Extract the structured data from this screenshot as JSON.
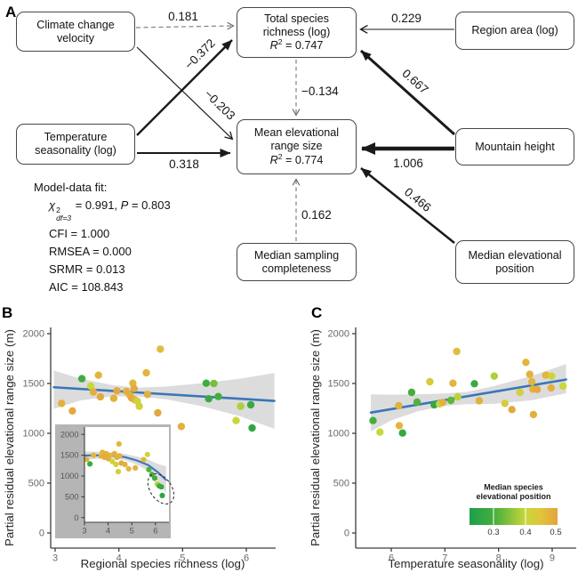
{
  "figure": {
    "panels": {
      "a": "A",
      "b": "B",
      "c": "C"
    }
  },
  "diagram": {
    "nodes": {
      "ccv": {
        "line1": "Climate change",
        "line2": "velocity"
      },
      "ts": {
        "line1": "Temperature",
        "line2": "seasonality (log)"
      },
      "tsr": {
        "line1": "Total species",
        "line2": "richness (log)",
        "r2_var": "R",
        "r2_exp": "2",
        "r2_val": " = 0.747"
      },
      "mers": {
        "line1": "Mean elevational",
        "line2": "range size",
        "r2_var": "R",
        "r2_exp": "2",
        "r2_val": " = 0.774"
      },
      "ra": {
        "line1": "Region area (log)"
      },
      "mh": {
        "line1": "Mountain height"
      },
      "msc": {
        "line1": "Median sampling",
        "line2": "completeness"
      },
      "mep": {
        "line1": "Median elevational",
        "line2": "position"
      }
    },
    "coefficients": {
      "ccv_tsr": "0.181",
      "ts_tsr": "−0.372",
      "ccv_mers": "−0.203",
      "ts_mers": "0.318",
      "ra_tsr": "0.229",
      "mh_tsr": "0.667",
      "mh_mers": "1.006",
      "mep_mers": "0.466",
      "tsr_mers": "−0.134",
      "msc_mers": "0.162"
    },
    "model_fit": {
      "title": "Model-data fit:",
      "chi_sym": "χ",
      "chi_exp": "2",
      "chi_sub": "df=3",
      "chi_eq": " = 0.991, ",
      "p_sym": "P",
      "p_val": " = 0.803",
      "cfi": "CFI = 1.000",
      "rmsea": "RMSEA = 0.000",
      "srmr": "SRMR = 0.013",
      "aic": "AIC = 108.843"
    }
  },
  "colors": {
    "regression_line": "#3a76b8",
    "confidence_band": "#dcdcdc",
    "inset_background": "#b5b5b5",
    "axis": "#3d3d3d",
    "tick_label": "#6a6a6a"
  },
  "color_scale": {
    "title_lines": [
      "Median species",
      "elevational position"
    ],
    "domain": [
      0.225,
      0.5
    ],
    "ticks": [
      0.3,
      0.4,
      0.5
    ],
    "tick_labels": [
      "0.3",
      "0.4",
      "0.5"
    ],
    "stops": [
      [
        0.225,
        "#1d9f4a"
      ],
      [
        0.3,
        "#44ae3d"
      ],
      [
        0.35,
        "#85c13b"
      ],
      [
        0.4,
        "#c8d83a"
      ],
      [
        0.45,
        "#e0c33c"
      ],
      [
        0.5,
        "#e4a33e"
      ]
    ]
  },
  "chart_data": [
    {
      "id": "panel_b_main",
      "type": "scatter",
      "xlabel": "Regional species richness (log)",
      "ylabel": "Partial residual elevational range size (m)",
      "xticks": [
        3,
        4,
        5,
        6
      ],
      "yticks": [
        0,
        500,
        1000,
        1500,
        2000
      ],
      "xlim": [
        2.93,
        6.46
      ],
      "ylim": [
        -150,
        2060
      ],
      "points": [
        [
          3.1,
          1300,
          0.48
        ],
        [
          3.27,
          1225,
          0.49
        ],
        [
          3.42,
          1548,
          0.29
        ],
        [
          3.56,
          1473,
          0.4
        ],
        [
          3.6,
          1414,
          0.48
        ],
        [
          3.68,
          1583,
          0.47
        ],
        [
          3.71,
          1366,
          0.49
        ],
        [
          3.92,
          1351,
          0.48
        ],
        [
          3.97,
          1426,
          0.49
        ],
        [
          4.12,
          1420,
          0.48
        ],
        [
          4.22,
          1503,
          0.47
        ],
        [
          4.24,
          1449,
          0.49
        ],
        [
          4.17,
          1384,
          0.48
        ],
        [
          4.2,
          1354,
          0.49
        ],
        [
          4.25,
          1337,
          0.48
        ],
        [
          4.29,
          1322,
          0.41
        ],
        [
          4.32,
          1271,
          0.42
        ],
        [
          4.43,
          1607,
          0.47
        ],
        [
          4.45,
          1390,
          0.48
        ],
        [
          4.65,
          1845,
          0.46
        ],
        [
          4.61,
          1205,
          0.49
        ],
        [
          4.98,
          1069,
          0.48
        ],
        [
          5.37,
          1503,
          0.29
        ],
        [
          5.49,
          1500,
          0.34
        ],
        [
          5.41,
          1346,
          0.28
        ],
        [
          5.56,
          1369,
          0.3
        ],
        [
          5.91,
          1271,
          0.38
        ],
        [
          6.07,
          1286,
          0.28
        ],
        [
          5.84,
          1128,
          0.4
        ],
        [
          6.09,
          1054,
          0.26
        ]
      ],
      "line": {
        "x": [
          2.98,
          6.44
        ],
        "y": [
          1462,
          1325
        ]
      },
      "band": {
        "x": [
          2.98,
          3.4,
          3.9,
          4.3,
          4.75,
          5.3,
          5.9,
          6.44
        ],
        "upper": [
          1630,
          1548,
          1483,
          1459,
          1470,
          1502,
          1548,
          1605
        ],
        "lower": [
          1245,
          1330,
          1372,
          1370,
          1340,
          1272,
          1172,
          1045
        ]
      }
    },
    {
      "id": "panel_b_inset",
      "type": "scatter",
      "xticks": [
        3,
        4,
        5,
        6
      ],
      "yticks": [
        0,
        500,
        1000,
        1500,
        2000
      ],
      "xlim": [
        3.0,
        6.55
      ],
      "ylim": [
        0,
        2100
      ],
      "points": [
        [
          3.09,
          1400,
          0.48
        ],
        [
          3.23,
          1290,
          0.28
        ],
        [
          3.38,
          1497,
          0.47
        ],
        [
          3.7,
          1483,
          0.48
        ],
        [
          3.76,
          1566,
          0.47
        ],
        [
          3.85,
          1448,
          0.49
        ],
        [
          3.92,
          1538,
          0.48
        ],
        [
          4.01,
          1414,
          0.48
        ],
        [
          4.1,
          1497,
          0.47
        ],
        [
          4.18,
          1345,
          0.41
        ],
        [
          4.27,
          1538,
          0.48
        ],
        [
          4.33,
          1276,
          0.42
        ],
        [
          4.37,
          1448,
          0.48
        ],
        [
          4.46,
          1772,
          0.47
        ],
        [
          4.48,
          1483,
          0.48
        ],
        [
          4.56,
          1310,
          0.49
        ],
        [
          4.43,
          1103,
          0.43
        ],
        [
          4.71,
          1276,
          0.48
        ],
        [
          4.87,
          1172,
          0.47
        ],
        [
          5.15,
          1193,
          0.48
        ],
        [
          5.5,
          1393,
          0.47
        ],
        [
          5.66,
          1517,
          0.4
        ],
        [
          5.72,
          1152,
          0.31
        ],
        [
          5.85,
          1034,
          0.3
        ],
        [
          5.97,
          945,
          0.29
        ],
        [
          6.08,
          807,
          0.39
        ],
        [
          6.16,
          759,
          0.3
        ],
        [
          6.25,
          738,
          0.27
        ],
        [
          6.29,
          531,
          0.26
        ]
      ],
      "line": {
        "x": [
          3.0,
          3.6,
          4.2,
          4.7,
          5.2,
          5.7,
          6.1,
          6.45
        ],
        "y": [
          1493,
          1497,
          1488,
          1455,
          1375,
          1260,
          1090,
          905
        ]
      },
      "band": {
        "x": [
          3.0,
          3.6,
          4.2,
          4.7,
          5.2,
          5.7,
          6.1,
          6.45
        ],
        "upper": [
          1590,
          1580,
          1560,
          1530,
          1470,
          1395,
          1290,
          1235
        ],
        "lower": [
          1390,
          1415,
          1418,
          1380,
          1275,
          1120,
          890,
          580
        ]
      },
      "highlight_ellipse": {
        "cx": 6.23,
        "cy": 690,
        "rx": 0.45,
        "ry": 405,
        "rot": -35
      }
    },
    {
      "id": "panel_c",
      "type": "scatter",
      "xlabel": "Temperature seasonality (log)",
      "ylabel": "Partial residual elevational range size (m)",
      "xticks": [
        6,
        7,
        8,
        9
      ],
      "yticks": [
        0,
        500,
        1000,
        1500,
        2000
      ],
      "xlim": [
        5.34,
        9.44
      ],
      "ylim": [
        -150,
        2060
      ],
      "points": [
        [
          5.66,
          1128,
          0.3
        ],
        [
          5.79,
          1012,
          0.4
        ],
        [
          6.14,
          1277,
          0.48
        ],
        [
          6.15,
          1077,
          0.47
        ],
        [
          6.21,
          1003,
          0.27
        ],
        [
          6.38,
          1411,
          0.3
        ],
        [
          6.48,
          1313,
          0.31
        ],
        [
          6.72,
          1518,
          0.43
        ],
        [
          6.8,
          1286,
          0.27
        ],
        [
          6.9,
          1295,
          0.4
        ],
        [
          6.96,
          1310,
          0.48
        ],
        [
          7.11,
          1330,
          0.32
        ],
        [
          7.15,
          1503,
          0.47
        ],
        [
          7.22,
          1821,
          0.46
        ],
        [
          7.24,
          1366,
          0.39
        ],
        [
          7.55,
          1497,
          0.28
        ],
        [
          7.64,
          1327,
          0.48
        ],
        [
          7.92,
          1574,
          0.38
        ],
        [
          8.12,
          1300,
          0.43
        ],
        [
          8.25,
          1238,
          0.49
        ],
        [
          8.4,
          1411,
          0.42
        ],
        [
          8.51,
          1712,
          0.47
        ],
        [
          8.58,
          1592,
          0.48
        ],
        [
          8.62,
          1518,
          0.47
        ],
        [
          8.64,
          1443,
          0.48
        ],
        [
          8.72,
          1440,
          0.49
        ],
        [
          8.65,
          1188,
          0.48
        ],
        [
          8.88,
          1583,
          0.47
        ],
        [
          8.99,
          1574,
          0.41
        ],
        [
          8.98,
          1455,
          0.48
        ],
        [
          9.2,
          1473,
          0.4
        ]
      ],
      "line": {
        "x": [
          5.62,
          9.26
        ],
        "y": [
          1208,
          1540
        ]
      },
      "band": {
        "x": [
          5.62,
          6.0,
          6.5,
          7.0,
          7.4,
          7.9,
          8.6,
          9.26
        ],
        "upper": [
          1392,
          1387,
          1392,
          1400,
          1415,
          1472,
          1572,
          1695
        ],
        "lower": [
          1020,
          1130,
          1222,
          1275,
          1292,
          1295,
          1330,
          1402
        ]
      }
    }
  ]
}
